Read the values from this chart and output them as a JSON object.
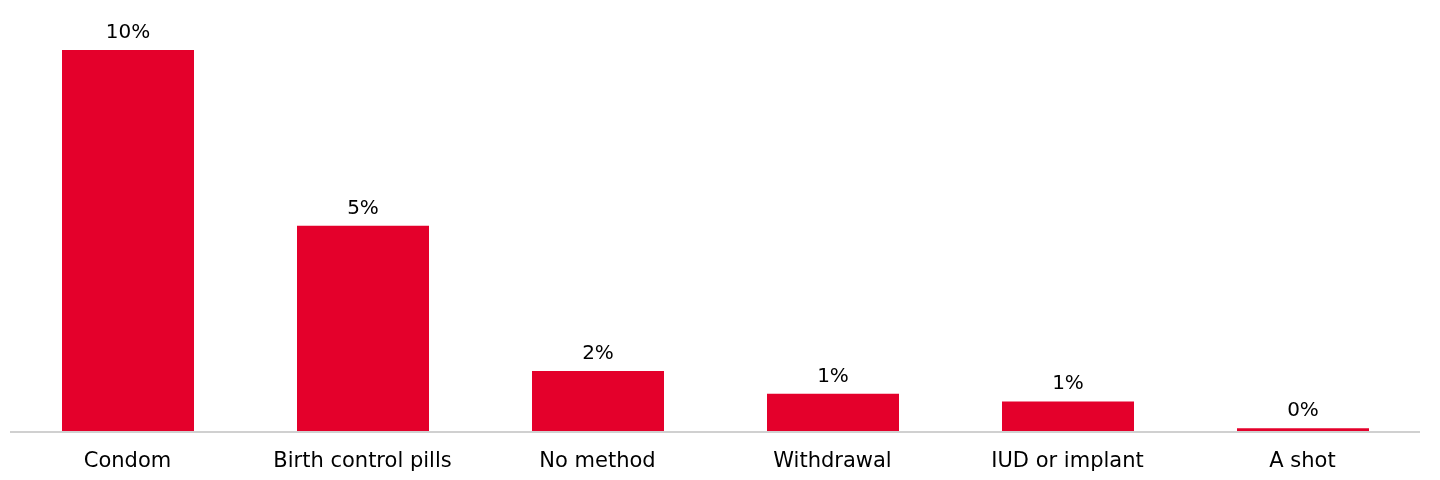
{
  "chart_data": {
    "type": "bar",
    "categories": [
      "Condom",
      "Birth control pills",
      "No method",
      "Withdrawal",
      "IUD or implant",
      "A shot"
    ],
    "values": [
      10,
      5.4,
      1.6,
      1.0,
      0.8,
      0.1
    ],
    "value_labels": [
      "10%",
      "5%",
      "2%",
      "1%",
      "1%",
      "0%"
    ],
    "color": "#e4002b",
    "grid": false,
    "legend": false
  }
}
